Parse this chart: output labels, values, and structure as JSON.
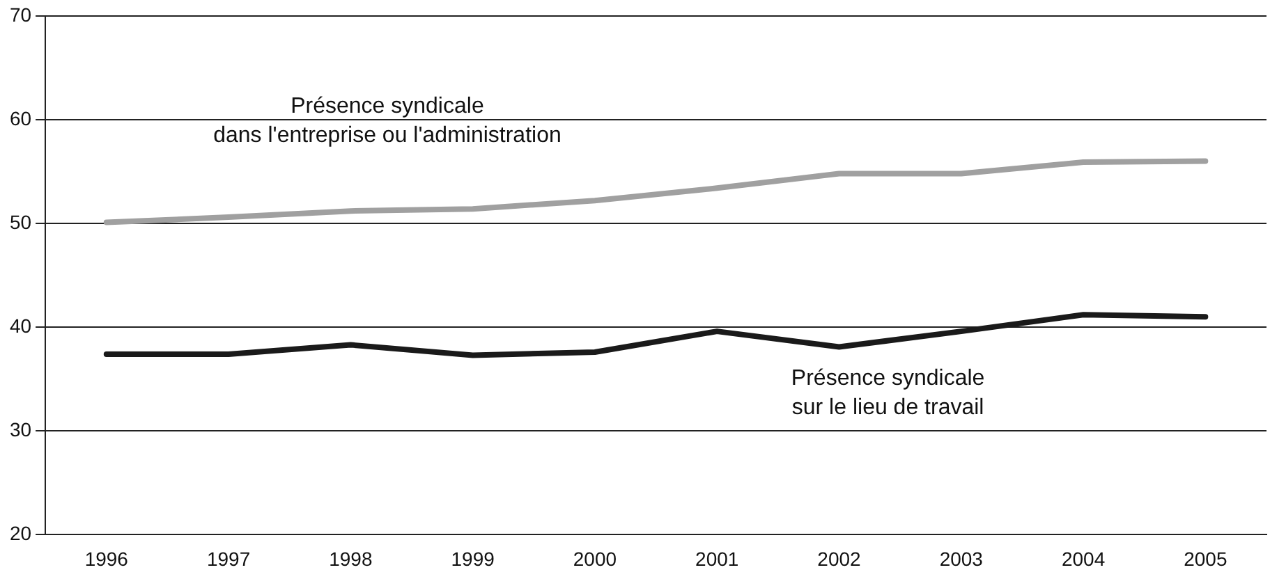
{
  "chart_data": {
    "type": "line",
    "categories": [
      "1996",
      "1997",
      "1998",
      "1999",
      "2000",
      "2001",
      "2002",
      "2003",
      "2004",
      "2005"
    ],
    "series": [
      {
        "name": "Présence syndicale\ndans l'entreprise ou l'administration",
        "color": "#a0a0a0",
        "values": [
          50.1,
          50.6,
          51.2,
          51.4,
          52.2,
          53.4,
          54.8,
          54.8,
          55.9,
          56.0
        ]
      },
      {
        "name": "Présence syndicale\nsur le lieu de travail",
        "color": "#1a1a1a",
        "values": [
          37.4,
          37.4,
          38.3,
          37.3,
          37.6,
          39.6,
          38.1,
          39.6,
          41.2,
          41.0
        ]
      }
    ],
    "ylim": [
      20,
      70
    ],
    "yticks": [
      20,
      30,
      40,
      50,
      60,
      70
    ],
    "grid": "y",
    "legend": false,
    "marker": "none",
    "line_style": "solid"
  }
}
